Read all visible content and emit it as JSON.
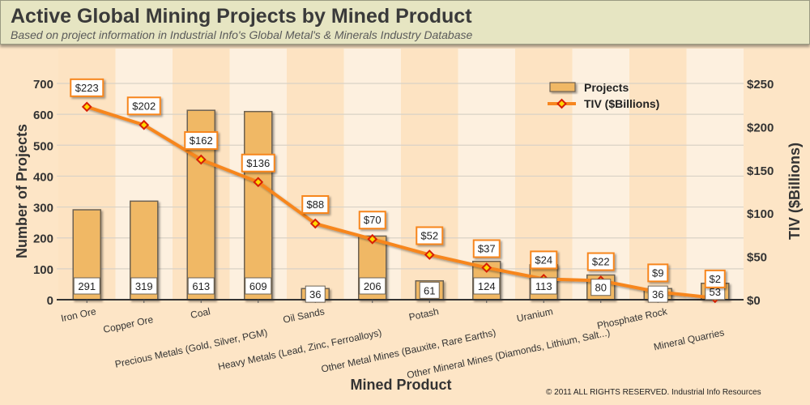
{
  "header": {
    "title": "Active Global Mining Projects by Mined Product",
    "subtitle": "Based on project information in Industrial Info's Global Metal's & Minerals Industry Database"
  },
  "copyright": "© 2011 ALL RIGHTS RESERVED. Industrial Info Resources",
  "colors": {
    "bar_fill": "#f0b865",
    "bar_stroke": "#6d6253",
    "line": "#f7861f",
    "marker": "#d81e05",
    "marker_center": "#ffd800",
    "label_border": "#f7861f"
  },
  "chart_data": {
    "type": "bar+line",
    "title": "Active Global Mining Projects by Mined Product",
    "xlabel": "Mined Product",
    "ylabel": "Number of Projects",
    "y2label": "TIV ($Billions)",
    "ylim": [
      0,
      700
    ],
    "y2lim": [
      0,
      250
    ],
    "yticks": [
      "0",
      "100",
      "200",
      "300",
      "400",
      "500",
      "600",
      "700"
    ],
    "y2ticks": [
      "$0",
      "$50",
      "$100",
      "$150",
      "$200",
      "$250"
    ],
    "grid": true,
    "legend_position": "top-right",
    "categories": [
      "Iron Ore",
      "Copper Ore",
      "Coal",
      "Precious Metals (Gold, Silver, PGM)",
      "Oil Sands",
      "Heavy Metals (Lead, Zinc, Ferroalloys)",
      "Potash",
      "Other Metal Mines (Bauxite, Rare Earths)",
      "Uranium",
      "Other Mineral Mines (Diamonds, Lithium, Salt...)",
      "Phosphate Rock",
      "Mineral Quarries"
    ],
    "series": [
      {
        "name": "Projects",
        "type": "bar",
        "axis": "left",
        "values": [
          291,
          319,
          613,
          609,
          36,
          206,
          61,
          124,
          113,
          80,
          36,
          53
        ],
        "labels": [
          "291",
          "319",
          "613",
          "609",
          "36",
          "206",
          "61",
          "124",
          "113",
          "80",
          "36",
          "53"
        ]
      },
      {
        "name": "TIV ($Billions)",
        "type": "line",
        "axis": "right",
        "values": [
          223,
          202,
          162,
          136,
          88,
          70,
          52,
          37,
          24,
          22,
          9,
          2
        ],
        "labels": [
          "$223",
          "$202",
          "$162",
          "$136",
          "$88",
          "$70",
          "$52",
          "$37",
          "$24",
          "$22",
          "$9",
          "$2"
        ]
      }
    ],
    "legend": [
      "Projects",
      "TIV ($Billions)"
    ]
  }
}
